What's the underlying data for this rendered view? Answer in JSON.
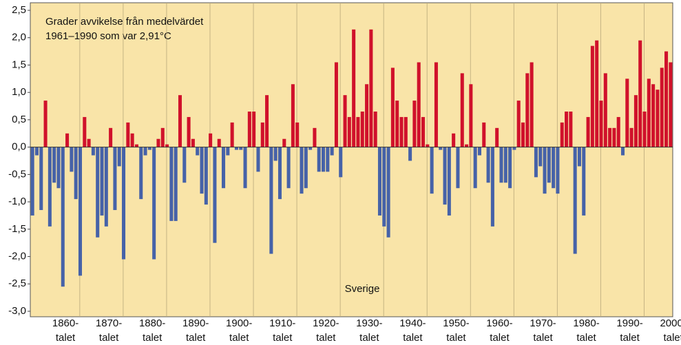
{
  "chart_data": {
    "type": "bar",
    "title_lines": [
      "Grader avvikelse från medelvärdet",
      "1961–1990 som var 2,91°C"
    ],
    "annotation": "Sverige",
    "decade_labels": [
      [
        "1860-",
        "talet"
      ],
      [
        "1870-",
        "talet"
      ],
      [
        "1880-",
        "talet"
      ],
      [
        "1890-",
        "talet"
      ],
      [
        "1900-",
        "talet"
      ],
      [
        "1910-",
        "talet"
      ],
      [
        "1920-",
        "talet"
      ],
      [
        "1930-",
        "talet"
      ],
      [
        "1940-",
        "talet"
      ],
      [
        "1950-",
        "talet"
      ],
      [
        "1960-",
        "talet"
      ],
      [
        "1970-",
        "talet"
      ],
      [
        "1980-",
        "talet"
      ],
      [
        "1990-",
        "talet"
      ],
      [
        "2000-",
        "talet"
      ]
    ],
    "values": [
      -1.25,
      -0.15,
      -1.15,
      0.85,
      -1.45,
      -0.65,
      -0.75,
      -2.55,
      0.25,
      -0.45,
      -0.95,
      -2.35,
      0.55,
      0.15,
      -0.15,
      -1.65,
      -1.25,
      -1.45,
      0.35,
      -1.15,
      -0.35,
      -2.05,
      0.45,
      0.25,
      0.05,
      -0.95,
      -0.15,
      -0.05,
      -2.05,
      0.15,
      0.35,
      0.05,
      -1.35,
      -1.35,
      0.95,
      -0.65,
      0.55,
      0.15,
      -0.15,
      -0.85,
      -1.05,
      0.25,
      -1.75,
      0.15,
      -0.75,
      -0.15,
      0.45,
      -0.05,
      -0.05,
      -0.75,
      0.65,
      0.65,
      -0.45,
      0.45,
      0.95,
      -1.95,
      -0.25,
      -0.95,
      0.15,
      -0.75,
      1.15,
      0.45,
      -0.85,
      -0.75,
      -0.05,
      0.35,
      -0.45,
      -0.45,
      -0.45,
      -0.15,
      1.55,
      -0.55,
      0.95,
      0.55,
      2.15,
      0.55,
      0.65,
      1.15,
      2.15,
      0.65,
      -1.25,
      -1.45,
      -1.65,
      1.45,
      0.85,
      0.55,
      0.55,
      -0.25,
      0.85,
      1.55,
      0.55,
      0.05,
      -0.85,
      1.55,
      -0.05,
      -1.05,
      -1.25,
      0.25,
      -0.75,
      1.35,
      0.05,
      1.15,
      -0.75,
      -0.15,
      0.45,
      -0.65,
      -1.45,
      0.35,
      -0.65,
      -0.65,
      -0.75,
      -0.05,
      0.85,
      0.45,
      1.35,
      1.55,
      -0.55,
      -0.35,
      -0.85,
      -0.65,
      -0.75,
      -0.85,
      0.45,
      0.65,
      0.65,
      -1.95,
      -0.35,
      -1.25,
      0.55,
      1.85,
      1.95,
      0.85,
      1.35,
      0.35,
      0.35,
      0.55,
      -0.15,
      1.25,
      0.35,
      0.95,
      1.95,
      0.65,
      1.25,
      1.15,
      1.05,
      1.45,
      1.75,
      1.55
    ],
    "positive_color": "#d0112b",
    "negative_color": "#4662a8",
    "background": "#f9e4a8",
    "ylim": [
      -3.0,
      2.5
    ],
    "yticks": [
      {
        "value": -3.0,
        "label": "-3,0"
      },
      {
        "value": -2.5,
        "label": "-2,5"
      },
      {
        "value": -2.0,
        "label": "-2,0"
      },
      {
        "value": -1.5,
        "label": "-1,5"
      },
      {
        "value": -1.0,
        "label": "-1,0"
      },
      {
        "value": -0.5,
        "label": "-0,5"
      },
      {
        "value": 0.0,
        "label": "0,0"
      },
      {
        "value": 0.5,
        "label": "0,5"
      },
      {
        "value": 1.0,
        "label": "1,0"
      },
      {
        "value": 1.5,
        "label": "1,5"
      },
      {
        "value": 2.0,
        "label": "2,0"
      },
      {
        "value": 2.5,
        "label": "2,5"
      }
    ]
  }
}
